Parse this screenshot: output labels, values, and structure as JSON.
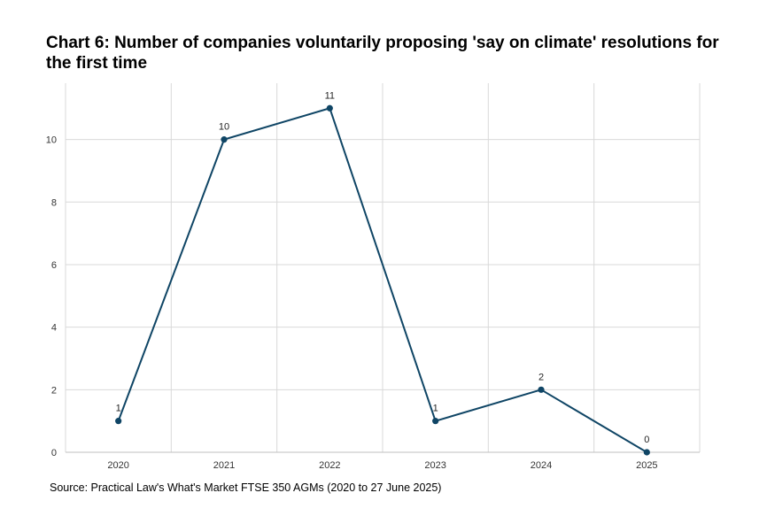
{
  "chart_data": {
    "type": "line",
    "title": "Chart 6: Number of companies voluntarily proposing 'say on climate' resolutions for the first time",
    "xlabel": "",
    "ylabel": "",
    "categories": [
      "2020",
      "2021",
      "2022",
      "2023",
      "2024",
      "2025"
    ],
    "series": [
      {
        "values": [
          1,
          10,
          11,
          1,
          2,
          0
        ]
      }
    ],
    "ylim": [
      0,
      11.8
    ],
    "yticks": [
      0,
      2,
      4,
      6,
      8,
      10
    ],
    "grid": true,
    "data_labels": true,
    "line_color": "#0f4565",
    "grid_color": "#d9d9d9"
  },
  "source": "Source: Practical Law's What's Market FTSE 350 AGMs (2020 to 27 June 2025)"
}
